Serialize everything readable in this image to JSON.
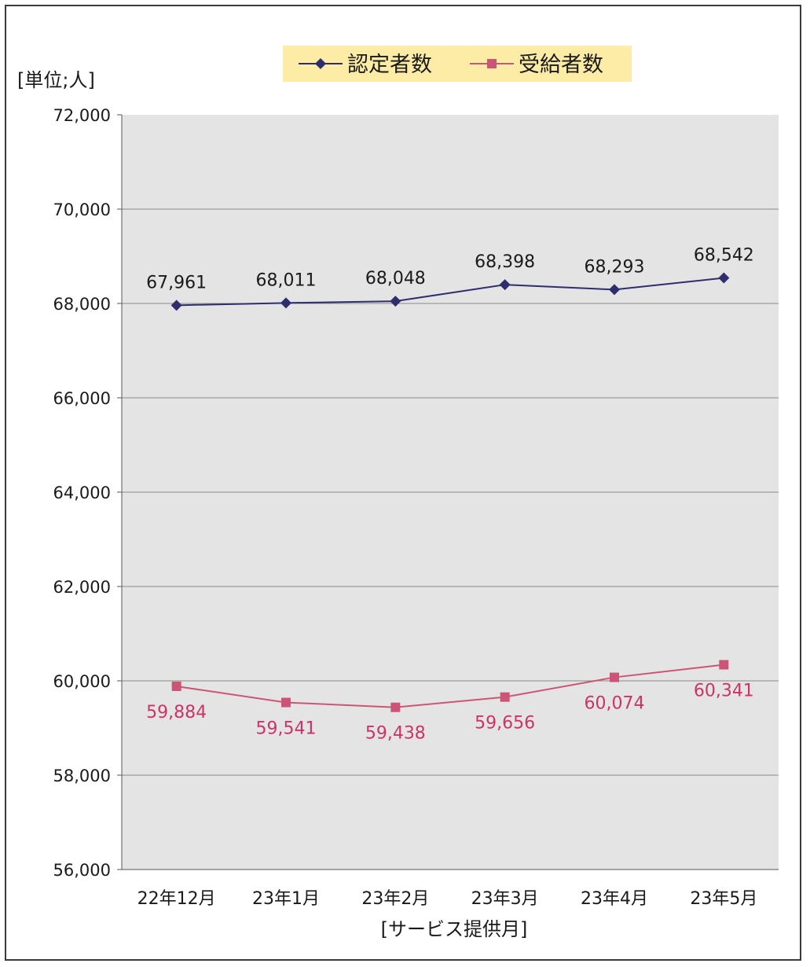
{
  "chart_data": {
    "type": "line",
    "title": "",
    "ylabel": "[単位;人]",
    "xlabel": "[サービス提供月]",
    "categories": [
      "22年12月",
      "23年1月",
      "23年2月",
      "23年3月",
      "23年4月",
      "23年5月"
    ],
    "series": [
      {
        "name": "認定者数",
        "values": [
          67961,
          68011,
          68048,
          68398,
          68293,
          68542
        ],
        "color": "#2e2e6e",
        "marker": "diamond",
        "label_color": "#1a1a1a",
        "label_position": "above"
      },
      {
        "name": "受給者数",
        "values": [
          59884,
          59541,
          59438,
          59656,
          60074,
          60341
        ],
        "color": "#cc5577",
        "marker": "square",
        "label_color": "#cc3366",
        "label_position": "below"
      }
    ],
    "ylim": [
      56000,
      72000
    ],
    "ytick_step": 2000,
    "ytick_labels": [
      "56,000",
      "58,000",
      "60,000",
      "62,000",
      "64,000",
      "66,000",
      "68,000",
      "70,000",
      "72,000"
    ],
    "grid": true,
    "legend_position": "top-center",
    "plot_background": "#e4e4e4",
    "legend_background": "#fdeca6"
  }
}
